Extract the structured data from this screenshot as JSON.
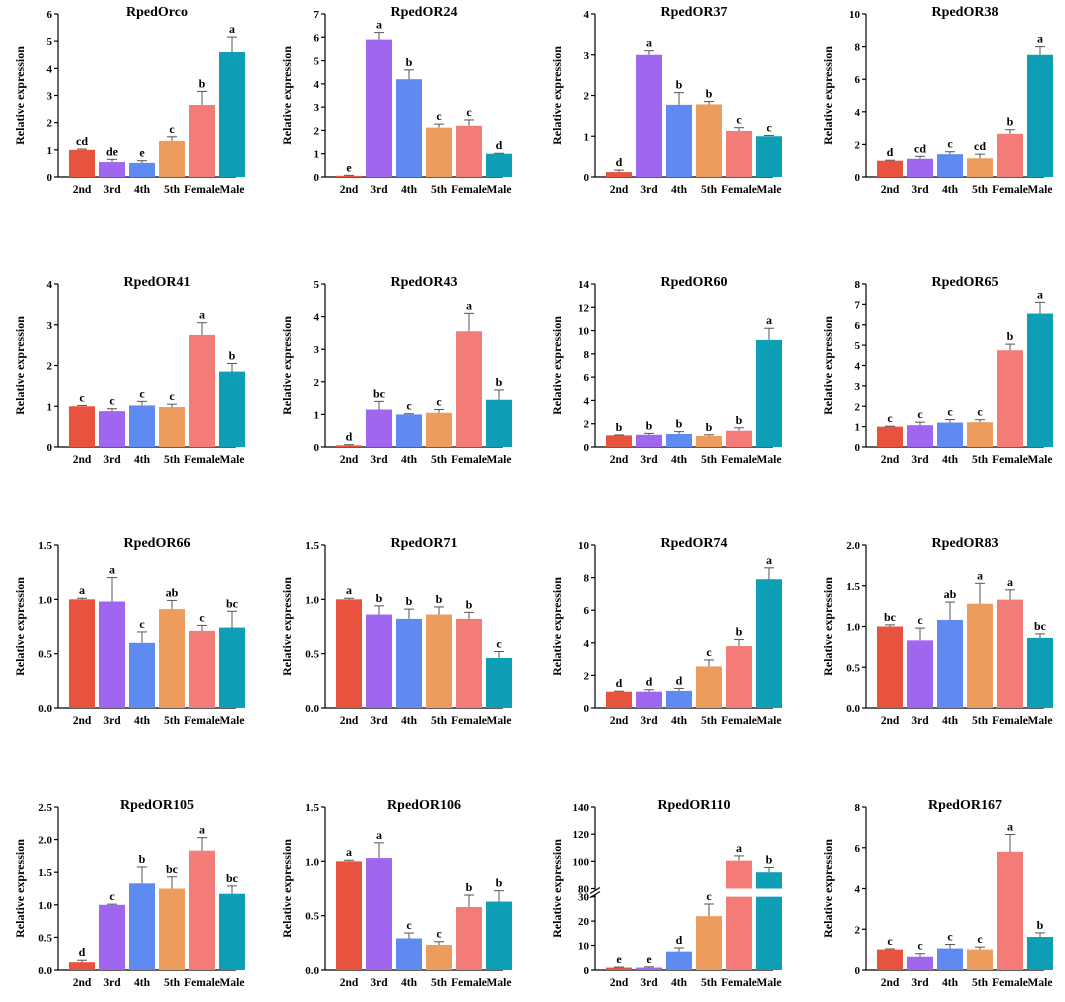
{
  "ylabel": "Relative expression",
  "categories": [
    "2nd",
    "3rd",
    "4th",
    "5th",
    "Female",
    "Male"
  ],
  "colors": {
    "2nd": "#e8533f",
    "3rd": "#a166f0",
    "4th": "#5e8af2",
    "5th": "#ec9c5c",
    "Female": "#f47c78",
    "Male": "#0e9fb4"
  },
  "chart_data": [
    {
      "type": "bar",
      "title": "RpedOrco",
      "categories": [
        "2nd",
        "3rd",
        "4th",
        "5th",
        "Female",
        "Male"
      ],
      "values": [
        1.0,
        0.55,
        0.52,
        1.33,
        2.65,
        4.6
      ],
      "errors": [
        0.03,
        0.1,
        0.08,
        0.15,
        0.5,
        0.55
      ],
      "labels": [
        "cd",
        "de",
        "e",
        "c",
        "b",
        "a"
      ],
      "ylim": [
        0,
        6
      ],
      "yticks": [
        0,
        1,
        2,
        3,
        4,
        5,
        6
      ]
    },
    {
      "type": "bar",
      "title": "RpedOR24",
      "categories": [
        "2nd",
        "3rd",
        "4th",
        "5th",
        "Female",
        "Male"
      ],
      "values": [
        0.05,
        5.9,
        4.2,
        2.12,
        2.2,
        1.0
      ],
      "errors": [
        0.02,
        0.3,
        0.4,
        0.15,
        0.25,
        0.02
      ],
      "labels": [
        "e",
        "a",
        "b",
        "c",
        "c",
        "d"
      ],
      "ylim": [
        0,
        7
      ],
      "yticks": [
        0,
        1,
        2,
        3,
        4,
        5,
        6,
        7
      ]
    },
    {
      "type": "bar",
      "title": "RpedOR37",
      "categories": [
        "2nd",
        "3rd",
        "4th",
        "5th",
        "Female",
        "Male"
      ],
      "values": [
        0.12,
        3.0,
        1.77,
        1.78,
        1.13,
        1.0
      ],
      "errors": [
        0.05,
        0.1,
        0.3,
        0.07,
        0.08,
        0.02
      ],
      "labels": [
        "d",
        "a",
        "b",
        "b",
        "c",
        "c"
      ],
      "ylim": [
        0,
        4
      ],
      "yticks": [
        0,
        1,
        2,
        3,
        4
      ]
    },
    {
      "type": "bar",
      "title": "RpedOR38",
      "categories": [
        "2nd",
        "3rd",
        "4th",
        "5th",
        "Female",
        "Male"
      ],
      "values": [
        1.0,
        1.12,
        1.4,
        1.15,
        2.65,
        7.5
      ],
      "errors": [
        0.03,
        0.15,
        0.15,
        0.25,
        0.25,
        0.5
      ],
      "labels": [
        "d",
        "cd",
        "c",
        "cd",
        "b",
        "a"
      ],
      "ylim": [
        0,
        10
      ],
      "yticks": [
        0,
        2,
        4,
        6,
        8,
        10
      ]
    },
    {
      "type": "bar",
      "title": "RpedOR41",
      "categories": [
        "2nd",
        "3rd",
        "4th",
        "5th",
        "Female",
        "Male"
      ],
      "values": [
        1.0,
        0.88,
        1.02,
        0.98,
        2.75,
        1.85
      ],
      "errors": [
        0.02,
        0.06,
        0.1,
        0.07,
        0.3,
        0.2
      ],
      "labels": [
        "c",
        "c",
        "c",
        "c",
        "a",
        "b"
      ],
      "ylim": [
        0,
        4
      ],
      "yticks": [
        0,
        1,
        2,
        3,
        4
      ]
    },
    {
      "type": "bar",
      "title": "RpedOR43",
      "categories": [
        "2nd",
        "3rd",
        "4th",
        "5th",
        "Female",
        "Male"
      ],
      "values": [
        0.05,
        1.15,
        1.0,
        1.05,
        3.55,
        1.45
      ],
      "errors": [
        0.02,
        0.25,
        0.02,
        0.1,
        0.55,
        0.3
      ],
      "labels": [
        "d",
        "bc",
        "c",
        "c",
        "a",
        "b"
      ],
      "ylim": [
        0,
        5
      ],
      "yticks": [
        0,
        1,
        2,
        3,
        4,
        5
      ]
    },
    {
      "type": "bar",
      "title": "RpedOR60",
      "categories": [
        "2nd",
        "3rd",
        "4th",
        "5th",
        "Female",
        "Male"
      ],
      "values": [
        1.0,
        1.05,
        1.12,
        0.95,
        1.4,
        9.2
      ],
      "errors": [
        0.03,
        0.12,
        0.2,
        0.1,
        0.25,
        1.0
      ],
      "labels": [
        "b",
        "b",
        "b",
        "b",
        "b",
        "a"
      ],
      "ylim": [
        0,
        14
      ],
      "yticks": [
        0,
        2,
        4,
        6,
        8,
        10,
        12,
        14
      ]
    },
    {
      "type": "bar",
      "title": "RpedOR65",
      "categories": [
        "2nd",
        "3rd",
        "4th",
        "5th",
        "Female",
        "Male"
      ],
      "values": [
        1.0,
        1.07,
        1.2,
        1.22,
        4.75,
        6.55
      ],
      "errors": [
        0.02,
        0.15,
        0.15,
        0.12,
        0.3,
        0.55
      ],
      "labels": [
        "c",
        "c",
        "c",
        "c",
        "b",
        "a"
      ],
      "ylim": [
        0,
        8
      ],
      "yticks": [
        0,
        1,
        2,
        3,
        4,
        5,
        6,
        7,
        8
      ]
    },
    {
      "type": "bar",
      "title": "RpedOR66",
      "categories": [
        "2nd",
        "3rd",
        "4th",
        "5th",
        "Female",
        "Male"
      ],
      "values": [
        1.0,
        0.98,
        0.6,
        0.91,
        0.71,
        0.74
      ],
      "errors": [
        0.01,
        0.22,
        0.1,
        0.08,
        0.05,
        0.15
      ],
      "labels": [
        "a",
        "a",
        "c",
        "ab",
        "c",
        "bc"
      ],
      "ylim": [
        0,
        1.5
      ],
      "yticks": [
        0,
        0.5,
        1.0,
        1.5
      ],
      "tick_format": 1
    },
    {
      "type": "bar",
      "title": "RpedOR71",
      "categories": [
        "2nd",
        "3rd",
        "4th",
        "5th",
        "Female",
        "Male"
      ],
      "values": [
        1.0,
        0.86,
        0.82,
        0.86,
        0.82,
        0.46
      ],
      "errors": [
        0.01,
        0.08,
        0.09,
        0.07,
        0.06,
        0.06
      ],
      "labels": [
        "a",
        "b",
        "b",
        "b",
        "b",
        "c"
      ],
      "ylim": [
        0,
        1.5
      ],
      "yticks": [
        0,
        0.5,
        1.0,
        1.5
      ],
      "tick_format": 1
    },
    {
      "type": "bar",
      "title": "RpedOR74",
      "categories": [
        "2nd",
        "3rd",
        "4th",
        "5th",
        "Female",
        "Male"
      ],
      "values": [
        1.0,
        1.0,
        1.05,
        2.55,
        3.8,
        7.9
      ],
      "errors": [
        0.03,
        0.12,
        0.15,
        0.4,
        0.4,
        0.7
      ],
      "labels": [
        "d",
        "d",
        "d",
        "c",
        "b",
        "a"
      ],
      "ylim": [
        0,
        10
      ],
      "yticks": [
        0,
        2,
        4,
        6,
        8,
        10
      ]
    },
    {
      "type": "bar",
      "title": "RpedOR83",
      "categories": [
        "2nd",
        "3rd",
        "4th",
        "5th",
        "Female",
        "Male"
      ],
      "values": [
        1.0,
        0.83,
        1.08,
        1.28,
        1.33,
        0.86
      ],
      "errors": [
        0.02,
        0.15,
        0.22,
        0.25,
        0.12,
        0.05
      ],
      "labels": [
        "bc",
        "c",
        "ab",
        "a",
        "a",
        "bc"
      ],
      "ylim": [
        0,
        2.0
      ],
      "yticks": [
        0,
        0.5,
        1.0,
        1.5,
        2.0
      ],
      "tick_format": 1
    },
    {
      "type": "bar",
      "title": "RpedOR105",
      "categories": [
        "2nd",
        "3rd",
        "4th",
        "5th",
        "Female",
        "Male"
      ],
      "values": [
        0.12,
        1.0,
        1.33,
        1.25,
        1.83,
        1.17
      ],
      "errors": [
        0.03,
        0.01,
        0.25,
        0.18,
        0.2,
        0.12
      ],
      "labels": [
        "d",
        "c",
        "b",
        "bc",
        "a",
        "bc"
      ],
      "ylim": [
        0,
        2.5
      ],
      "yticks": [
        0,
        0.5,
        1.0,
        1.5,
        2.0,
        2.5
      ],
      "tick_format": 1
    },
    {
      "type": "bar",
      "title": "RpedOR106",
      "categories": [
        "2nd",
        "3rd",
        "4th",
        "5th",
        "Female",
        "Male"
      ],
      "values": [
        1.0,
        1.03,
        0.29,
        0.23,
        0.58,
        0.63
      ],
      "errors": [
        0.01,
        0.14,
        0.05,
        0.03,
        0.11,
        0.1
      ],
      "labels": [
        "a",
        "a",
        "c",
        "c",
        "b",
        "b"
      ],
      "ylim": [
        0,
        1.5
      ],
      "yticks": [
        0,
        0.5,
        1.0,
        1.5
      ],
      "tick_format": 1
    },
    {
      "type": "bar",
      "title": "RpedOR110",
      "categories": [
        "2nd",
        "3rd",
        "4th",
        "5th",
        "Female",
        "Male"
      ],
      "values": [
        1.0,
        1.0,
        7.5,
        22.0,
        100.5,
        92.0
      ],
      "errors": [
        0.2,
        0.3,
        1.5,
        5.0,
        3.5,
        3.5
      ],
      "labels": [
        "e",
        "e",
        "d",
        "c",
        "a",
        "b"
      ],
      "ylim": [
        0,
        140
      ],
      "yticks": [
        0,
        10,
        20,
        30,
        80,
        100,
        120,
        140
      ],
      "axis_break": [
        30,
        80
      ]
    },
    {
      "type": "bar",
      "title": "RpedOR167",
      "categories": [
        "2nd",
        "3rd",
        "4th",
        "5th",
        "Female",
        "Male"
      ],
      "values": [
        1.0,
        0.65,
        1.05,
        1.0,
        5.8,
        1.62
      ],
      "errors": [
        0.03,
        0.15,
        0.2,
        0.12,
        0.85,
        0.2
      ],
      "labels": [
        "c",
        "c",
        "c",
        "c",
        "a",
        "b"
      ],
      "ylim": [
        0,
        8
      ],
      "yticks": [
        0,
        2,
        4,
        6,
        8
      ]
    }
  ]
}
